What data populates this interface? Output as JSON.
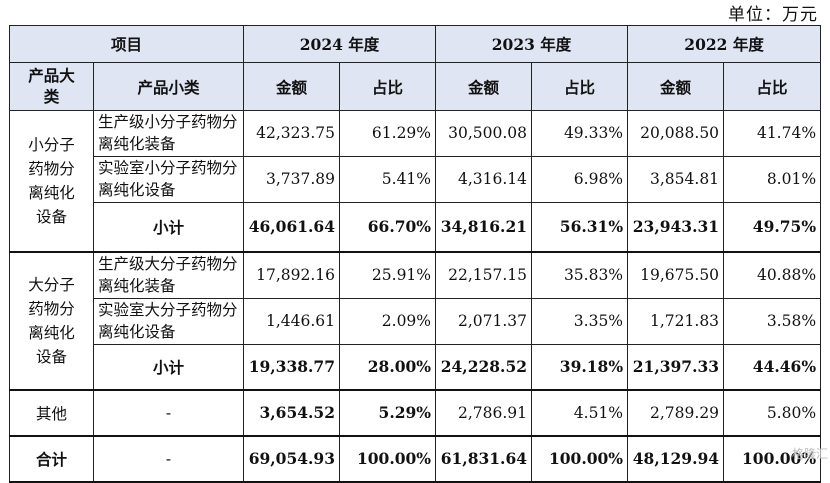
{
  "unit": "单位：万元",
  "header": {
    "item": "项目",
    "y2024": "2024 年度",
    "y2023": "2023 年度",
    "y2022": "2022 年度",
    "big_cat": "产品大类",
    "small_cat": "产品小类",
    "amount": "金额",
    "ratio": "占比"
  },
  "groups": [
    {
      "category": "小分子药物分离纯化设备",
      "rows": [
        {
          "sub": "生产级小分子药物分离纯化装备",
          "v": [
            "42,323.75",
            "61.29%",
            "30,500.08",
            "49.33%",
            "20,088.50",
            "41.74%"
          ]
        },
        {
          "sub": "实验室小分子药物分离纯化设备",
          "v": [
            "3,737.89",
            "5.41%",
            "4,316.14",
            "6.98%",
            "3,854.81",
            "8.01%"
          ]
        }
      ],
      "subtotal": {
        "label": "小计",
        "v": [
          "46,061.64",
          "66.70%",
          "34,816.21",
          "56.31%",
          "23,943.31",
          "49.75%"
        ]
      }
    },
    {
      "category": "大分子药物分离纯化设备",
      "rows": [
        {
          "sub": "生产级大分子药物分离纯化装备",
          "v": [
            "17,892.16",
            "25.91%",
            "22,157.15",
            "35.83%",
            "19,675.50",
            "40.88%"
          ]
        },
        {
          "sub": "实验室大分子药物分离纯化设备",
          "v": [
            "1,446.61",
            "2.09%",
            "2,071.37",
            "3.35%",
            "1,721.83",
            "3.58%"
          ]
        }
      ],
      "subtotal": {
        "label": "小计",
        "v": [
          "19,338.77",
          "28.00%",
          "24,228.52",
          "39.18%",
          "21,397.33",
          "44.46%"
        ]
      }
    }
  ],
  "other": {
    "label": "其他",
    "dash": "-",
    "v": [
      "3,654.52",
      "5.29%",
      "2,786.91",
      "4.51%",
      "2,789.29",
      "5.80%"
    ]
  },
  "total": {
    "label": "合计",
    "dash": "-",
    "v": [
      "69,054.93",
      "100.00%",
      "61,831.64",
      "100.00%",
      "48,129.94",
      "100.00%"
    ]
  },
  "watermark": "格隆汇"
}
